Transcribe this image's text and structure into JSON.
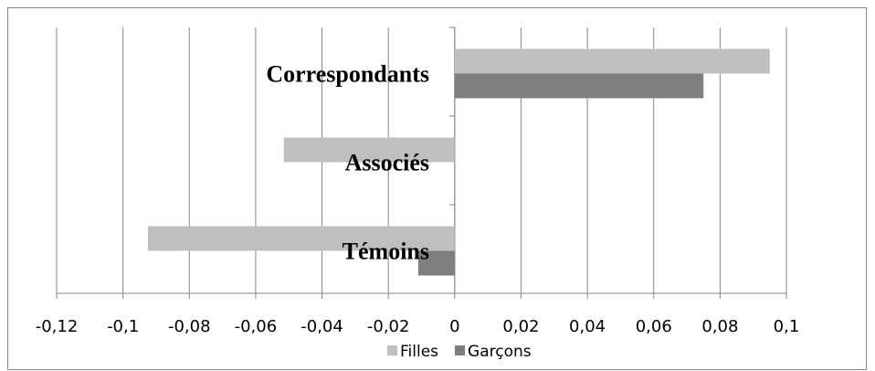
{
  "chart_data": {
    "type": "hbar",
    "categories": [
      "Correspondants",
      "Associés",
      "Témoins"
    ],
    "series": [
      {
        "name": "Filles",
        "color": "#bfbfbf",
        "values": [
          0.095,
          -0.0515,
          -0.0925
        ]
      },
      {
        "name": "Garçons",
        "color": "#7f7f7f",
        "values": [
          0.075,
          0,
          -0.011
        ]
      }
    ],
    "xlim": [
      -0.12,
      0.1
    ],
    "xticks": [
      {
        "value": -0.12,
        "label": "-0,12"
      },
      {
        "value": -0.1,
        "label": "-0,1"
      },
      {
        "value": -0.08,
        "label": "-0,08"
      },
      {
        "value": -0.06,
        "label": "-0,06"
      },
      {
        "value": -0.04,
        "label": "-0,04"
      },
      {
        "value": -0.02,
        "label": "-0,02"
      },
      0,
      {
        "value": 0.02,
        "label": "0,02"
      },
      {
        "value": 0.04,
        "label": "0,04"
      },
      {
        "value": 0.06,
        "label": "0,06"
      },
      {
        "value": 0.08,
        "label": "0,08"
      },
      {
        "value": 0.1,
        "label": "0,1"
      }
    ],
    "grid": true,
    "legend": "bottom"
  }
}
